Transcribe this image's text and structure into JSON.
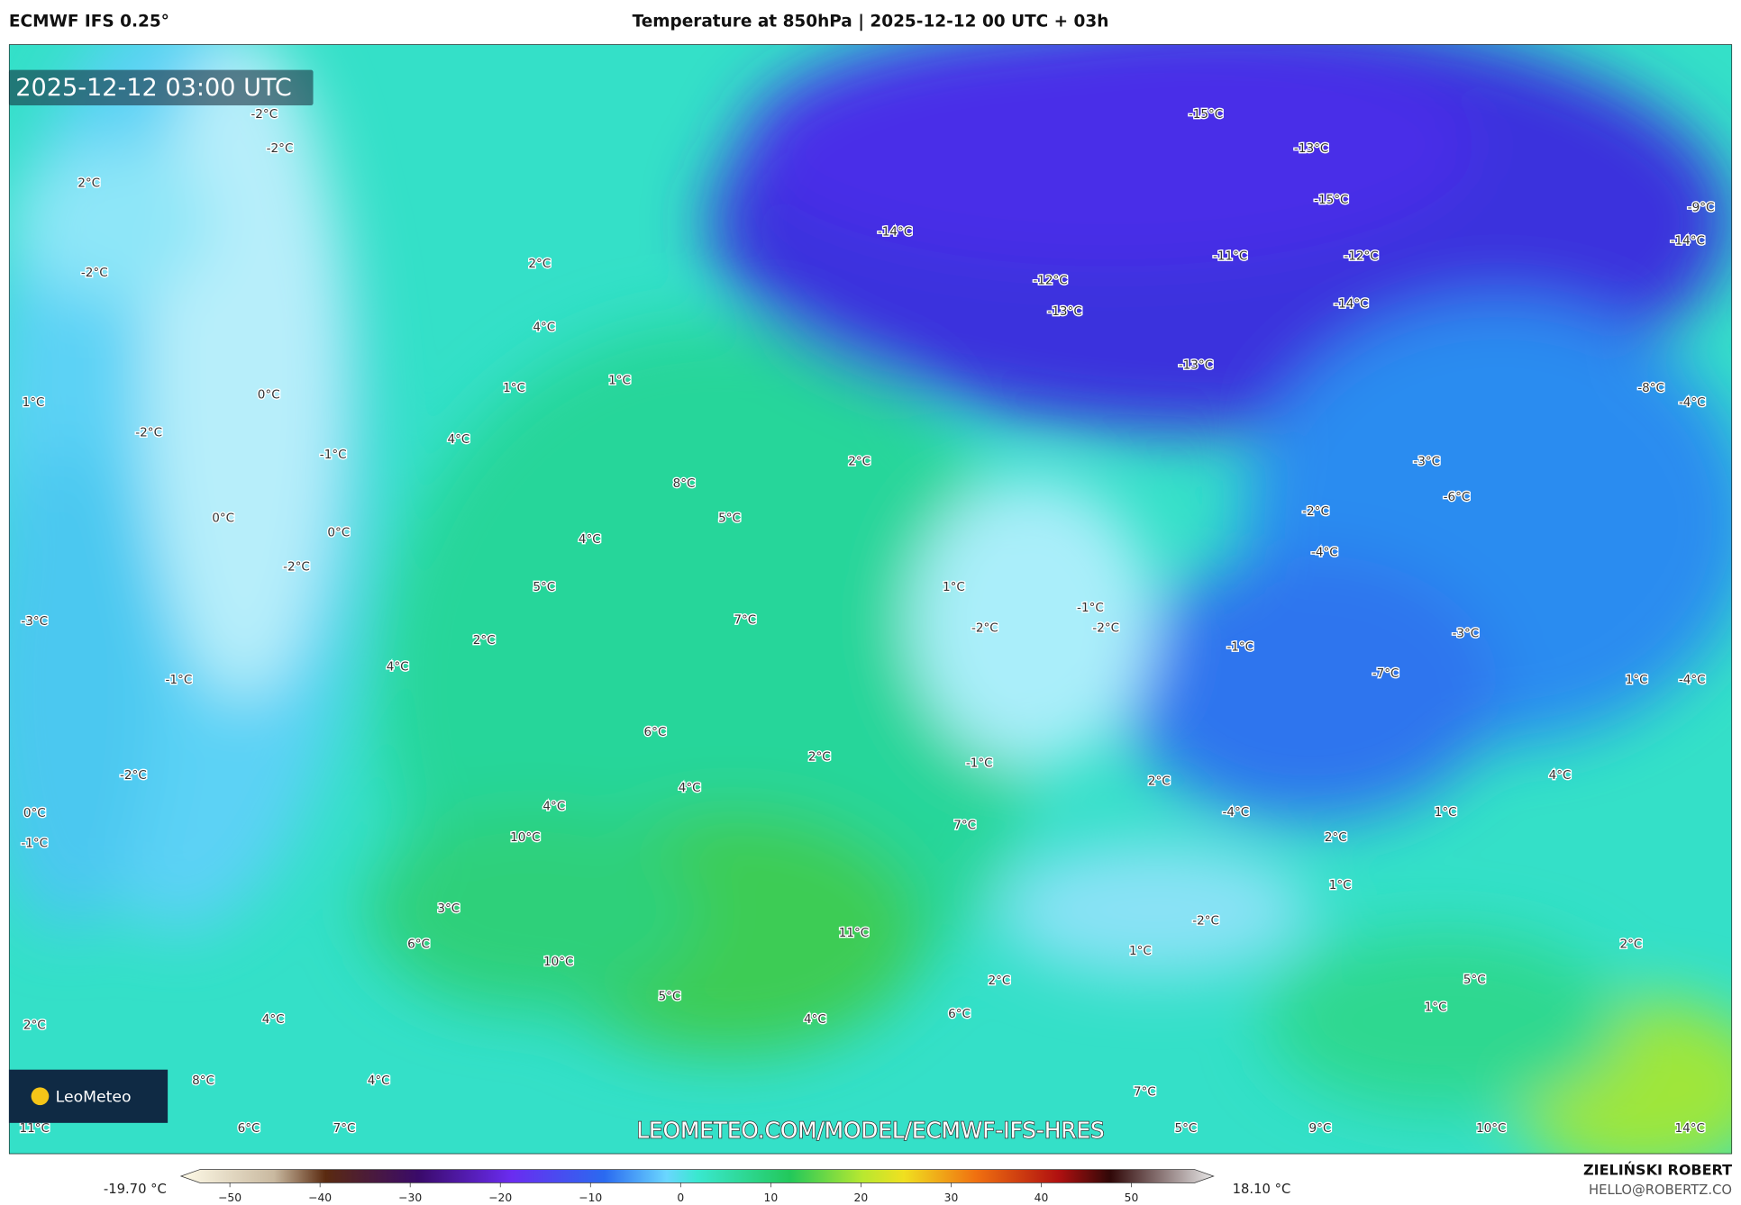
{
  "header": {
    "source": "ECMWF IFS 0.25°",
    "title": "Temperature at 850hPa | 2025-12-12 00 UTC + 03h"
  },
  "map": {
    "timestamp": "2025-12-12 03:00 UTC",
    "watermark": "LEOMETEO.COM/MODEL/ECMWF-IFS-HRES",
    "labels": [
      "-2°C",
      "-2°C",
      "2°C",
      "-2°C",
      "2°C",
      "4°C",
      "1°C",
      "1°C",
      "1°C",
      "0°C",
      "-2°C",
      "4°C",
      "-1°C",
      "0°C",
      "8°C",
      "5°C",
      "0°C",
      "4°C",
      "-2°C",
      "5°C",
      "-3°C",
      "7°C",
      "2°C",
      "4°C",
      "-1°C",
      "6°C",
      "2°C",
      "-2°C",
      "4°C",
      "4°C",
      "0°C",
      "-1°C",
      "10°C",
      "7°C",
      "3°C",
      "6°C",
      "11°C",
      "10°C",
      "2°C",
      "4°C",
      "5°C",
      "4°C",
      "6°C",
      "2°C",
      "8°C",
      "4°C",
      "11°C",
      "6°C",
      "7°C",
      "7°C",
      "5°C",
      "9°C",
      "10°C",
      "14°C",
      "2°C",
      "1°C",
      "5°C",
      "1°C",
      "-2°C",
      "1°C",
      "2°C",
      "-4°C",
      "1°C",
      "2°C",
      "-1°C",
      "4°C",
      "1°C",
      "-4°C",
      "-7°C",
      "-3°C",
      "-1°C",
      "-2°C",
      "-1°C",
      "-2°C",
      "1°C",
      "-4°C",
      "-2°C",
      "-6°C",
      "-3°C",
      "2°C",
      "-8°C",
      "-4°C",
      "-13°C",
      "-14°C",
      "-12°C",
      "-11°C",
      "-13°C",
      "-12°C",
      "-14°C",
      "-15°C",
      "-13°C",
      "-15°C",
      "-9°C",
      "-14°C"
    ]
  },
  "logo": {
    "text": "LeoMeteo"
  },
  "legend": {
    "min_label": "-19.70 °C",
    "max_label": "18.10 °C",
    "ticks": [
      {
        "value": -50,
        "label": "−50"
      },
      {
        "value": -40,
        "label": "−40"
      },
      {
        "value": -30,
        "label": "−30"
      },
      {
        "value": -20,
        "label": "−20"
      },
      {
        "value": -10,
        "label": "−10"
      },
      0,
      10,
      20,
      30,
      40,
      50
    ]
  },
  "footer": {
    "author": "ZIELIŃSKI ROBERT",
    "email": "HELLO@ROBERTZ.CO"
  }
}
